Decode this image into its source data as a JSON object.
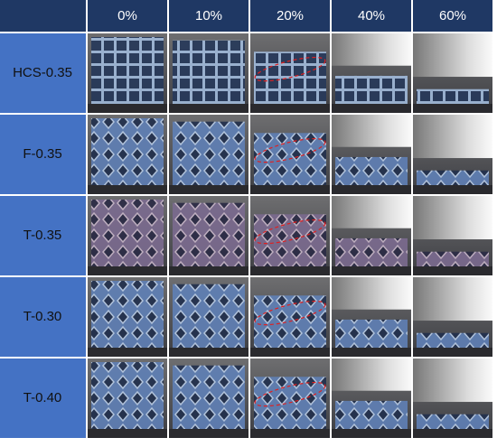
{
  "header": {
    "columns": [
      "0%",
      "10%",
      "20%",
      "40%",
      "60%"
    ]
  },
  "rows": [
    "HCS-0.35",
    "F-0.35",
    "T-0.35",
    "T-0.30",
    "T-0.40"
  ]
}
